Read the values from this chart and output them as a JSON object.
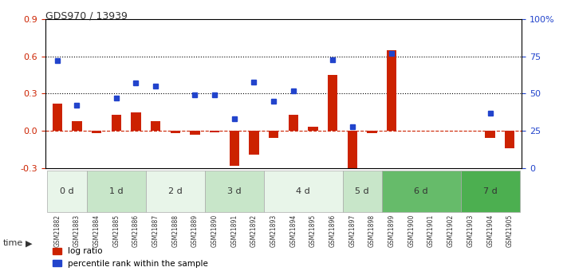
{
  "title": "GDS970 / 13939",
  "samples": [
    "GSM21882",
    "GSM21883",
    "GSM21884",
    "GSM21885",
    "GSM21886",
    "GSM21887",
    "GSM21888",
    "GSM21889",
    "GSM21890",
    "GSM21891",
    "GSM21892",
    "GSM21893",
    "GSM21894",
    "GSM21895",
    "GSM21896",
    "GSM21897",
    "GSM21898",
    "GSM21899",
    "GSM21900",
    "GSM21901",
    "GSM21902",
    "GSM21903",
    "GSM21904",
    "GSM21905"
  ],
  "log_ratio": [
    0.22,
    0.08,
    -0.02,
    0.13,
    0.15,
    0.08,
    -0.02,
    -0.03,
    -0.01,
    -0.28,
    -0.19,
    -0.06,
    0.13,
    0.03,
    0.45,
    -0.32,
    -0.02,
    0.65,
    0.0,
    0.0,
    0.0,
    0.0,
    -0.06,
    -0.14
  ],
  "pct_rank": [
    72,
    42,
    null,
    47,
    57,
    55,
    null,
    49,
    49,
    33,
    58,
    45,
    52,
    null,
    73,
    28,
    null,
    77,
    null,
    null,
    null,
    null,
    37,
    null
  ],
  "time_groups": [
    {
      "label": "0 d",
      "indices": [
        0,
        1
      ],
      "color": "#e8f5e9"
    },
    {
      "label": "1 d",
      "indices": [
        2,
        3,
        4
      ],
      "color": "#c8e6c9"
    },
    {
      "label": "2 d",
      "indices": [
        5,
        6,
        7
      ],
      "color": "#e8f5e9"
    },
    {
      "label": "3 d",
      "indices": [
        8,
        9,
        10
      ],
      "color": "#c8e6c9"
    },
    {
      "label": "4 d",
      "indices": [
        11,
        12,
        13,
        14
      ],
      "color": "#e8f5e9"
    },
    {
      "label": "5 d",
      "indices": [
        15,
        16
      ],
      "color": "#c8e6c9"
    },
    {
      "label": "6 d",
      "indices": [
        17,
        18,
        19,
        20
      ],
      "color": "#66bb6a"
    },
    {
      "label": "7 d",
      "indices": [
        21,
        22,
        23
      ],
      "color": "#4caf50"
    }
  ],
  "ylim_left": [
    -0.3,
    0.9
  ],
  "ylim_right": [
    0,
    100
  ],
  "yticks_left": [
    -0.3,
    0.0,
    0.3,
    0.6,
    0.9
  ],
  "yticks_right": [
    0,
    25,
    50,
    75,
    100
  ],
  "bar_color": "#cc2200",
  "dot_color": "#2244cc",
  "hline_color": "#cc2200",
  "dotted_line_color": "#000000",
  "bg_color": "#ffffff",
  "grid_color": "#cccccc"
}
